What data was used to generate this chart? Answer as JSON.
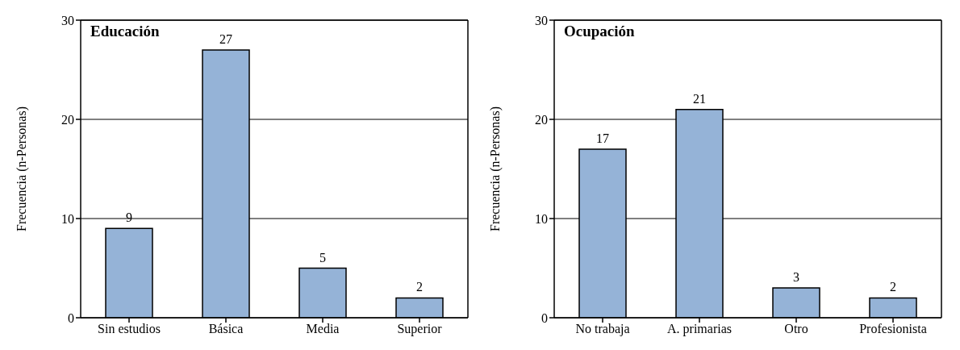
{
  "chart_data": [
    {
      "type": "bar",
      "title": "Educación",
      "ylabel": "Frecuencia (n-Personas)",
      "categories": [
        "Sin estudios",
        "Básica",
        "Media",
        "Superior"
      ],
      "values": [
        9,
        27,
        5,
        2
      ],
      "color": "#95b3d7",
      "ylim": [
        0,
        30
      ],
      "yticks": [
        0,
        10,
        20,
        30
      ],
      "grid": "y",
      "data_labels": true
    },
    {
      "type": "bar",
      "title": "Ocupación",
      "ylabel": "Frecuencia (n-Personas)",
      "categories": [
        "No trabaja",
        "A. primarias",
        "Otro",
        "Profesionista"
      ],
      "values": [
        17,
        21,
        3,
        2
      ],
      "color": "#95b3d7",
      "ylim": [
        0,
        30
      ],
      "yticks": [
        0,
        10,
        20,
        30
      ],
      "grid": "y",
      "data_labels": true
    }
  ]
}
